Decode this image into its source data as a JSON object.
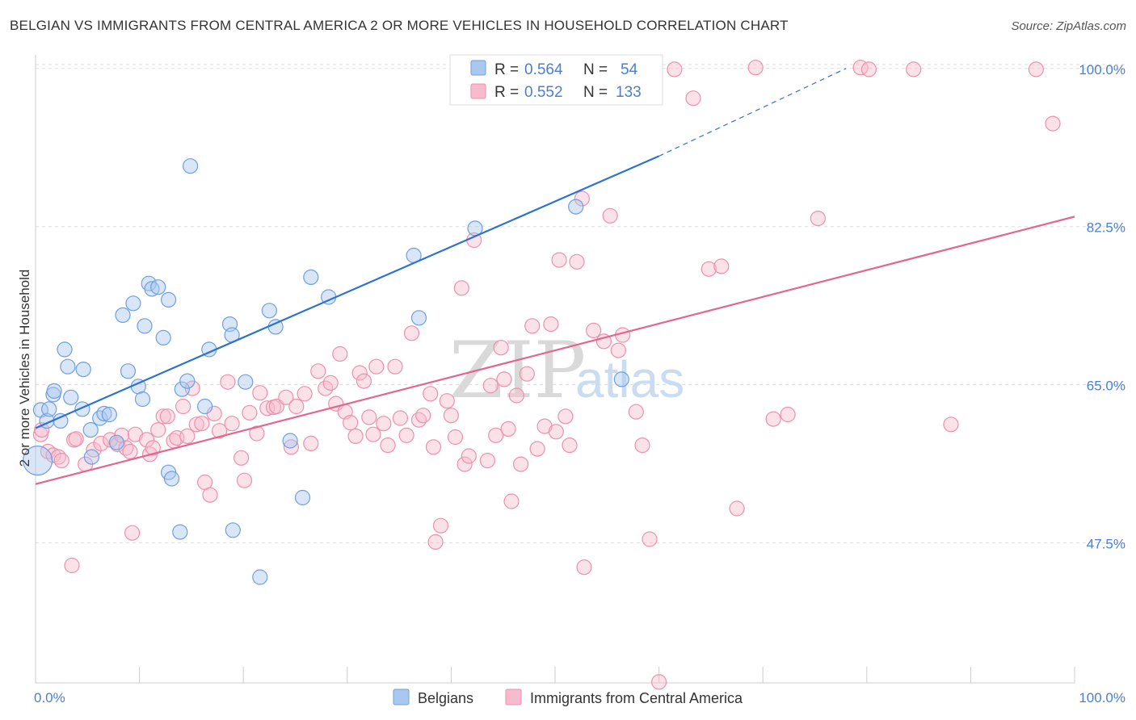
{
  "title": "BELGIAN VS IMMIGRANTS FROM CENTRAL AMERICA 2 OR MORE VEHICLES IN HOUSEHOLD CORRELATION CHART",
  "source": "Source: ZipAtlas.com",
  "watermark": {
    "zip": "ZIP",
    "atlas": "atlas"
  },
  "colors": {
    "blue_fill": "#a9c8ef",
    "blue_stroke": "#6f9fde",
    "blue_line": "#2d72d2",
    "pink_fill": "#f6bccd",
    "pink_stroke": "#ec91ad",
    "pink_line": "#e3668f",
    "value_text": "#4a7fd0",
    "grid": "#dddddd"
  },
  "legend_top": {
    "rows": [
      {
        "r_label": "R =",
        "r_value": "0.564",
        "n_label": "N =",
        "n_value": "54"
      },
      {
        "r_label": "R =",
        "r_value": "0.552",
        "n_label": "N =",
        "n_value": "133"
      }
    ]
  },
  "chart_data": {
    "type": "scatter",
    "title": "BELGIAN VS IMMIGRANTS FROM CENTRAL AMERICA 2 OR MORE VEHICLES IN HOUSEHOLD CORRELATION CHART",
    "xlabel": "",
    "ylabel": "2 or more Vehicles in Household",
    "xlim": [
      0,
      100
    ],
    "ylim": [
      32.0,
      101.5
    ],
    "x_tick_labels": [
      "0.0%",
      "100.0%"
    ],
    "y_ticks": [
      {
        "value": 100.0,
        "label": "100.0%"
      },
      {
        "value": 82.5,
        "label": "82.5%"
      },
      {
        "value": 65.0,
        "label": "65.0%"
      },
      {
        "value": 47.5,
        "label": "47.5%"
      }
    ],
    "grid": true,
    "legend_placement": "bottom-center",
    "series": [
      {
        "name": "Belgians",
        "color": "#6f9fde",
        "trend": {
          "x0": 0.0,
          "y0": 60.2,
          "x1": 60.0,
          "y1": 90.3,
          "dash_to_x": 78.0,
          "dash_to_y": 100.0
        },
        "points": [
          [
            0.2,
            56.6
          ],
          [
            0.5,
            62.2
          ],
          [
            1.1,
            61.0
          ],
          [
            1.3,
            62.3
          ],
          [
            1.7,
            63.9
          ],
          [
            1.8,
            64.3
          ],
          [
            2.4,
            61.0
          ],
          [
            2.8,
            68.9
          ],
          [
            3.1,
            67.0
          ],
          [
            3.4,
            63.6
          ],
          [
            4.6,
            66.7
          ],
          [
            4.5,
            62.3
          ],
          [
            5.3,
            60.0
          ],
          [
            5.4,
            57.0
          ],
          [
            6.2,
            61.3
          ],
          [
            6.6,
            61.8
          ],
          [
            7.1,
            61.7
          ],
          [
            7.8,
            58.6
          ],
          [
            8.4,
            72.7
          ],
          [
            8.9,
            66.5
          ],
          [
            9.4,
            74.0
          ],
          [
            9.9,
            64.8
          ],
          [
            10.3,
            63.4
          ],
          [
            10.5,
            71.5
          ],
          [
            10.9,
            76.2
          ],
          [
            11.2,
            75.6
          ],
          [
            11.8,
            75.8
          ],
          [
            12.3,
            70.2
          ],
          [
            12.8,
            74.4
          ],
          [
            12.8,
            55.3
          ],
          [
            13.1,
            54.6
          ],
          [
            13.9,
            48.7
          ],
          [
            14.1,
            64.5
          ],
          [
            14.6,
            65.4
          ],
          [
            14.9,
            89.2
          ],
          [
            16.3,
            62.6
          ],
          [
            16.7,
            68.9
          ],
          [
            18.7,
            71.7
          ],
          [
            18.9,
            70.5
          ],
          [
            19.0,
            48.9
          ],
          [
            20.2,
            65.3
          ],
          [
            21.6,
            43.7
          ],
          [
            22.5,
            73.2
          ],
          [
            23.1,
            71.4
          ],
          [
            24.5,
            58.8
          ],
          [
            25.7,
            52.5
          ],
          [
            26.5,
            76.9
          ],
          [
            28.2,
            74.7
          ],
          [
            36.4,
            79.3
          ],
          [
            36.9,
            72.4
          ],
          [
            42.3,
            82.3
          ],
          [
            43.7,
            100.0
          ],
          [
            52.0,
            84.7
          ],
          [
            56.4,
            65.6
          ]
        ]
      },
      {
        "name": "Immigrants from Central America",
        "color": "#ec91ad",
        "trend": {
          "x0": 0.0,
          "y0": 54.0,
          "x1": 100.0,
          "y1": 83.6
        },
        "points": [
          [
            0.5,
            59.5
          ],
          [
            0.6,
            60.0
          ],
          [
            1.2,
            57.6
          ],
          [
            1.7,
            57.2
          ],
          [
            2.2,
            57.0
          ],
          [
            2.5,
            56.6
          ],
          [
            3.5,
            45.0
          ],
          [
            3.7,
            58.9
          ],
          [
            3.9,
            59.0
          ],
          [
            4.8,
            56.2
          ],
          [
            5.6,
            57.8
          ],
          [
            6.3,
            58.5
          ],
          [
            7.2,
            58.9
          ],
          [
            7.9,
            58.4
          ],
          [
            8.3,
            59.4
          ],
          [
            8.7,
            58.0
          ],
          [
            9.1,
            57.6
          ],
          [
            9.3,
            48.6
          ],
          [
            9.6,
            59.5
          ],
          [
            10.7,
            58.9
          ],
          [
            11.0,
            57.3
          ],
          [
            11.3,
            58.0
          ],
          [
            11.8,
            60.0
          ],
          [
            12.3,
            61.5
          ],
          [
            12.7,
            61.5
          ],
          [
            13.3,
            58.8
          ],
          [
            13.6,
            59.1
          ],
          [
            14.2,
            62.6
          ],
          [
            14.6,
            59.3
          ],
          [
            15.1,
            64.6
          ],
          [
            15.5,
            60.6
          ],
          [
            16.0,
            60.7
          ],
          [
            16.3,
            54.2
          ],
          [
            16.8,
            52.8
          ],
          [
            17.2,
            61.8
          ],
          [
            17.7,
            59.9
          ],
          [
            18.5,
            65.3
          ],
          [
            18.9,
            60.7
          ],
          [
            19.8,
            56.9
          ],
          [
            20.1,
            54.4
          ],
          [
            20.6,
            61.9
          ],
          [
            21.3,
            59.6
          ],
          [
            21.6,
            64.1
          ],
          [
            22.3,
            62.4
          ],
          [
            22.9,
            62.5
          ],
          [
            23.2,
            62.6
          ],
          [
            24.1,
            63.6
          ],
          [
            24.6,
            58.1
          ],
          [
            25.1,
            62.6
          ],
          [
            25.9,
            64.0
          ],
          [
            26.5,
            58.5
          ],
          [
            27.2,
            66.5
          ],
          [
            27.9,
            64.6
          ],
          [
            28.4,
            65.2
          ],
          [
            28.9,
            62.9
          ],
          [
            29.3,
            68.4
          ],
          [
            29.8,
            62.0
          ],
          [
            30.3,
            60.8
          ],
          [
            30.8,
            59.3
          ],
          [
            31.2,
            66.3
          ],
          [
            31.6,
            65.4
          ],
          [
            32.1,
            61.4
          ],
          [
            32.5,
            59.5
          ],
          [
            32.8,
            67.0
          ],
          [
            33.5,
            60.7
          ],
          [
            33.9,
            58.3
          ],
          [
            34.6,
            67.0
          ],
          [
            35.1,
            61.3
          ],
          [
            35.7,
            59.4
          ],
          [
            36.2,
            70.7
          ],
          [
            36.9,
            61.1
          ],
          [
            37.3,
            61.6
          ],
          [
            38.0,
            64.0
          ],
          [
            38.3,
            58.1
          ],
          [
            38.5,
            47.6
          ],
          [
            39.0,
            49.4
          ],
          [
            39.6,
            63.2
          ],
          [
            40.0,
            61.6
          ],
          [
            40.4,
            59.2
          ],
          [
            41.0,
            75.7
          ],
          [
            41.3,
            56.2
          ],
          [
            41.7,
            57.1
          ],
          [
            42.2,
            81.0
          ],
          [
            43.5,
            56.6
          ],
          [
            43.8,
            64.9
          ],
          [
            44.3,
            59.4
          ],
          [
            44.8,
            69.1
          ],
          [
            45.1,
            65.6
          ],
          [
            45.5,
            60.1
          ],
          [
            45.8,
            52.1
          ],
          [
            46.3,
            63.8
          ],
          [
            46.7,
            56.2
          ],
          [
            47.3,
            66.2
          ],
          [
            47.8,
            71.5
          ],
          [
            48.3,
            57.9
          ],
          [
            49.0,
            60.4
          ],
          [
            49.6,
            71.7
          ],
          [
            50.1,
            59.8
          ],
          [
            50.4,
            78.8
          ],
          [
            51.0,
            61.5
          ],
          [
            51.4,
            58.3
          ],
          [
            52.1,
            78.6
          ],
          [
            52.6,
            85.6
          ],
          [
            52.8,
            44.8
          ],
          [
            53.7,
            71.0
          ],
          [
            54.7,
            69.8
          ],
          [
            55.3,
            83.7
          ],
          [
            56.1,
            68.8
          ],
          [
            56.5,
            70.5
          ],
          [
            57.8,
            62.0
          ],
          [
            58.4,
            58.3
          ],
          [
            59.1,
            47.9
          ],
          [
            60.0,
            32.1
          ],
          [
            61.5,
            99.9
          ],
          [
            63.3,
            96.7
          ],
          [
            64.8,
            77.8
          ],
          [
            66.0,
            78.1
          ],
          [
            67.5,
            51.3
          ],
          [
            69.3,
            100.1
          ],
          [
            71.0,
            61.2
          ],
          [
            72.4,
            61.7
          ],
          [
            75.3,
            83.4
          ],
          [
            79.4,
            100.1
          ],
          [
            80.2,
            99.9
          ],
          [
            84.5,
            99.9
          ],
          [
            88.1,
            60.6
          ],
          [
            96.3,
            99.9
          ],
          [
            97.9,
            93.9
          ]
        ]
      }
    ]
  },
  "legend_bottom": {
    "items": [
      {
        "label": "Belgians"
      },
      {
        "label": "Immigrants from Central America"
      }
    ]
  }
}
